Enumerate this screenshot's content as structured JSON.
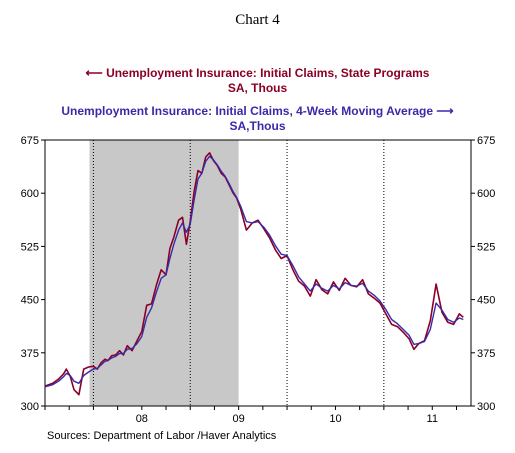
{
  "title": "Chart 4",
  "legend": {
    "series1_line1": "Unemployment Insurance: Initial Claims, State Programs",
    "series1_line2": "SA, Thous",
    "series2_line1": "Unemployment Insurance: Initial Claims, 4-Week Moving Average",
    "series2_line2": "SA,Thous"
  },
  "source": "Sources:  Department of Labor /Haver Analytics",
  "colors": {
    "series1": "#8b0024",
    "series2": "#3a2aa8",
    "recession": "#c8c8c8"
  },
  "chart_data": {
    "type": "line",
    "x_tick_labels": [
      "08",
      "09",
      "10",
      "11"
    ],
    "y_ticks": [
      300,
      375,
      450,
      525,
      600,
      675
    ],
    "ylim": [
      300,
      675
    ],
    "xlim": [
      2007.5,
      2011.9
    ],
    "recession": [
      2007.96,
      2009.5
    ],
    "series": [
      {
        "name": "Unemployment Insurance: Initial Claims, State Programs SA, Thous",
        "axis": "left",
        "x": [
          2007.5,
          2007.58,
          2007.64,
          2007.69,
          2007.72,
          2007.76,
          2007.8,
          2007.85,
          2007.9,
          2007.95,
          2008.0,
          2008.04,
          2008.08,
          2008.12,
          2008.15,
          2008.19,
          2008.23,
          2008.27,
          2008.31,
          2008.35,
          2008.4,
          2008.45,
          2008.5,
          2008.55,
          2008.6,
          2008.65,
          2008.7,
          2008.75,
          2008.79,
          2008.83,
          2008.88,
          2008.92,
          2008.96,
          2009.0,
          2009.04,
          2009.08,
          2009.12,
          2009.16,
          2009.2,
          2009.24,
          2009.28,
          2009.32,
          2009.36,
          2009.4,
          2009.44,
          2009.48,
          2009.52,
          2009.58,
          2009.64,
          2009.7,
          2009.76,
          2009.82,
          2009.88,
          2009.94,
          2010.0,
          2010.06,
          2010.12,
          2010.18,
          2010.24,
          2010.3,
          2010.36,
          2010.42,
          2010.48,
          2010.54,
          2010.6,
          2010.66,
          2010.72,
          2010.78,
          2010.84,
          2010.9,
          2010.96,
          2011.02,
          2011.08,
          2011.14,
          2011.2,
          2011.26,
          2011.31,
          2011.36,
          2011.42,
          2011.48,
          2011.54,
          2011.6,
          2011.66,
          2011.72,
          2011.78,
          2011.82
        ],
        "y": [
          328,
          332,
          338,
          345,
          352,
          342,
          323,
          316,
          352,
          355,
          356,
          352,
          361,
          366,
          364,
          371,
          372,
          378,
          372,
          385,
          378,
          392,
          405,
          442,
          444,
          470,
          492,
          485,
          522,
          538,
          562,
          566,
          528,
          560,
          602,
          632,
          628,
          651,
          657,
          646,
          639,
          628,
          623,
          612,
          601,
          593,
          578,
          548,
          558,
          562,
          550,
          537,
          520,
          508,
          512,
          492,
          476,
          469,
          455,
          478,
          464,
          458,
          475,
          463,
          480,
          470,
          468,
          478,
          458,
          452,
          445,
          430,
          415,
          412,
          404,
          395,
          380,
          388,
          392,
          420,
          472,
          432,
          418,
          415,
          430,
          425
        ]
      },
      {
        "name": "Unemployment Insurance: Initial Claims, 4-Week Moving Average SA,Thous",
        "axis": "right",
        "x": [
          2007.5,
          2007.58,
          2007.64,
          2007.69,
          2007.72,
          2007.76,
          2007.8,
          2007.85,
          2007.9,
          2007.95,
          2008.0,
          2008.04,
          2008.08,
          2008.12,
          2008.15,
          2008.19,
          2008.23,
          2008.27,
          2008.31,
          2008.35,
          2008.4,
          2008.45,
          2008.5,
          2008.55,
          2008.6,
          2008.65,
          2008.7,
          2008.75,
          2008.79,
          2008.83,
          2008.88,
          2008.92,
          2008.96,
          2009.0,
          2009.04,
          2009.08,
          2009.12,
          2009.16,
          2009.2,
          2009.24,
          2009.28,
          2009.32,
          2009.36,
          2009.4,
          2009.44,
          2009.48,
          2009.52,
          2009.58,
          2009.64,
          2009.7,
          2009.76,
          2009.82,
          2009.88,
          2009.94,
          2010.0,
          2010.06,
          2010.12,
          2010.18,
          2010.24,
          2010.3,
          2010.36,
          2010.42,
          2010.48,
          2010.54,
          2010.6,
          2010.66,
          2010.72,
          2010.78,
          2010.84,
          2010.9,
          2010.96,
          2011.02,
          2011.08,
          2011.14,
          2011.2,
          2011.26,
          2011.31,
          2011.36,
          2011.42,
          2011.48,
          2011.54,
          2011.6,
          2011.66,
          2011.72,
          2011.78,
          2011.82
        ],
        "y": [
          327,
          330,
          335,
          341,
          346,
          343,
          335,
          332,
          343,
          348,
          352,
          353,
          358,
          363,
          364,
          368,
          370,
          374,
          374,
          380,
          381,
          388,
          398,
          425,
          438,
          460,
          480,
          485,
          508,
          528,
          548,
          558,
          545,
          556,
          590,
          620,
          628,
          645,
          652,
          647,
          640,
          631,
          624,
          614,
          603,
          594,
          582,
          560,
          558,
          560,
          552,
          541,
          526,
          514,
          512,
          498,
          482,
          472,
          462,
          472,
          466,
          462,
          470,
          465,
          474,
          470,
          469,
          473,
          462,
          456,
          448,
          436,
          422,
          416,
          408,
          400,
          387,
          388,
          391,
          408,
          445,
          435,
          422,
          418,
          424,
          422
        ]
      }
    ]
  }
}
